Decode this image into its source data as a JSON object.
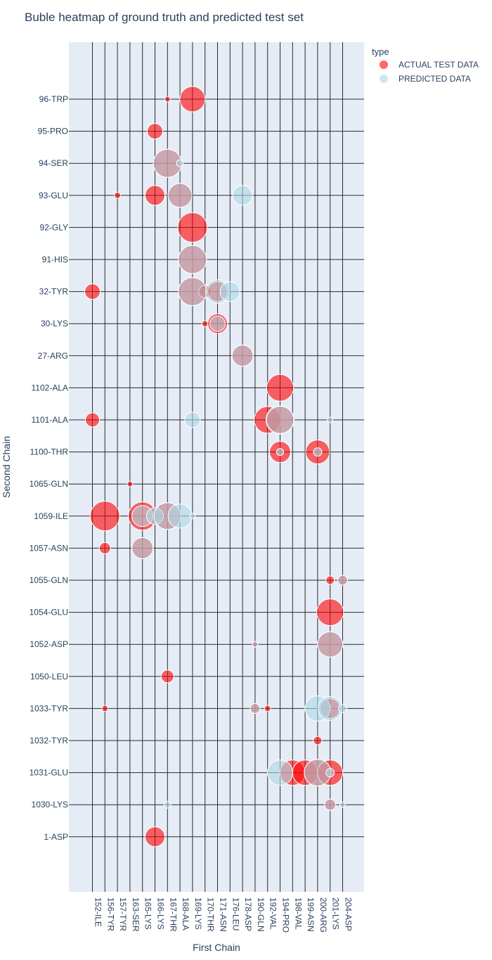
{
  "chart_data": {
    "type": "scatter",
    "title": "Buble heatmap of ground truth and predicted test set",
    "xlabel": "First Chain",
    "ylabel": "Second Chain",
    "legend_title": "type",
    "legend_position": "top-right",
    "grid": true,
    "x_categories": [
      "152-ILE",
      "156-TYR",
      "157-TYR",
      "163-SER",
      "165-LYS",
      "166-LYS",
      "167-THR",
      "168-ALA",
      "169-LYS",
      "170-THR",
      "171-ASN",
      "176-LEU",
      "178-ASP",
      "190-GLN",
      "192-VAL",
      "194-PRO",
      "198-VAL",
      "199-ASN",
      "200-ARG",
      "201-LYS",
      "204-ASP"
    ],
    "y_categories": [
      "96-TRP",
      "95-PRO",
      "94-SER",
      "93-GLU",
      "92-GLY",
      "91-HIS",
      "32-TYR",
      "30-LYS",
      "27-ARG",
      "1102-ALA",
      "1101-ALA",
      "1100-THR",
      "1065-GLN",
      "1059-ILE",
      "1057-ASN",
      "1055-GLN",
      "1054-GLU",
      "1052-ASP",
      "1050-LEU",
      "1033-TYR",
      "1032-TYR",
      "1031-GLU",
      "1030-LYS",
      "1-ASP"
    ],
    "series": [
      {
        "name": "ACTUAL TEST DATA",
        "color": "#ff0000",
        "opacity": 0.6,
        "points": [
          {
            "x": "167-THR",
            "y": "96-TRP",
            "size": 8
          },
          {
            "x": "169-LYS",
            "y": "96-TRP",
            "size": 36
          },
          {
            "x": "166-LYS",
            "y": "95-PRO",
            "size": 22
          },
          {
            "x": "167-THR",
            "y": "94-SER",
            "size": 40
          },
          {
            "x": "157-TYR",
            "y": "93-GLU",
            "size": 9
          },
          {
            "x": "166-LYS",
            "y": "93-GLU",
            "size": 28
          },
          {
            "x": "168-ALA",
            "y": "93-GLU",
            "size": 34
          },
          {
            "x": "169-LYS",
            "y": "92-GLY",
            "size": 42
          },
          {
            "x": "169-LYS",
            "y": "91-HIS",
            "size": 40
          },
          {
            "x": "152-ILE",
            "y": "32-TYR",
            "size": 22
          },
          {
            "x": "169-LYS",
            "y": "32-TYR",
            "size": 40
          },
          {
            "x": "170-THR",
            "y": "32-TYR",
            "size": 18
          },
          {
            "x": "171-ASN",
            "y": "32-TYR",
            "size": 28
          },
          {
            "x": "170-THR",
            "y": "30-LYS",
            "size": 9
          },
          {
            "x": "171-ASN",
            "y": "30-LYS",
            "size": 28
          },
          {
            "x": "178-ASP",
            "y": "27-ARG",
            "size": 30
          },
          {
            "x": "194-PRO",
            "y": "1102-ALA",
            "size": 38
          },
          {
            "x": "152-ILE",
            "y": "1101-ALA",
            "size": 20
          },
          {
            "x": "192-VAL",
            "y": "1101-ALA",
            "size": 38
          },
          {
            "x": "194-PRO",
            "y": "1101-ALA",
            "size": 38
          },
          {
            "x": "194-PRO",
            "y": "1100-THR",
            "size": 30
          },
          {
            "x": "200-ARG",
            "y": "1100-THR",
            "size": 34
          },
          {
            "x": "163-SER",
            "y": "1065-GLN",
            "size": 8
          },
          {
            "x": "156-TYR",
            "y": "1059-ILE",
            "size": 42
          },
          {
            "x": "165-LYS",
            "y": "1059-ILE",
            "size": 40
          },
          {
            "x": "167-THR",
            "y": "1059-ILE",
            "size": 38
          },
          {
            "x": "156-TYR",
            "y": "1057-ASN",
            "size": 16
          },
          {
            "x": "165-LYS",
            "y": "1057-ASN",
            "size": 30
          },
          {
            "x": "201-LYS",
            "y": "1055-GLN",
            "size": 12
          },
          {
            "x": "204-ASP",
            "y": "1055-GLN",
            "size": 14
          },
          {
            "x": "201-LYS",
            "y": "1054-GLU",
            "size": 38
          },
          {
            "x": "190-GLN",
            "y": "1052-ASP",
            "size": 8
          },
          {
            "x": "201-LYS",
            "y": "1052-ASP",
            "size": 36
          },
          {
            "x": "167-THR",
            "y": "1050-LEU",
            "size": 18
          },
          {
            "x": "156-TYR",
            "y": "1033-TYR",
            "size": 9
          },
          {
            "x": "190-GLN",
            "y": "1033-TYR",
            "size": 14
          },
          {
            "x": "192-VAL",
            "y": "1033-TYR",
            "size": 9
          },
          {
            "x": "201-LYS",
            "y": "1033-TYR",
            "size": 28
          },
          {
            "x": "200-ARG",
            "y": "1032-TYR",
            "size": 12
          },
          {
            "x": "198-VAL",
            "y": "1031-GLU",
            "size": 36
          },
          {
            "x": "199-ASN",
            "y": "1031-GLU",
            "size": 36
          },
          {
            "x": "200-ARG",
            "y": "1031-GLU",
            "size": 38
          },
          {
            "x": "201-LYS",
            "y": "1031-GLU",
            "size": 36
          },
          {
            "x": "201-LYS",
            "y": "1030-LYS",
            "size": 16
          },
          {
            "x": "166-LYS",
            "y": "1-ASP",
            "size": 28
          }
        ]
      },
      {
        "name": "PREDICTED DATA",
        "color": "#add8e6",
        "opacity": 0.6,
        "points": [
          {
            "x": "167-THR",
            "y": "94-SER",
            "size": 40
          },
          {
            "x": "168-ALA",
            "y": "94-SER",
            "size": 10
          },
          {
            "x": "168-ALA",
            "y": "93-GLU",
            "size": 34
          },
          {
            "x": "178-ASP",
            "y": "93-GLU",
            "size": 28
          },
          {
            "x": "169-LYS",
            "y": "91-HIS",
            "size": 40
          },
          {
            "x": "169-LYS",
            "y": "32-TYR",
            "size": 40
          },
          {
            "x": "171-ASN",
            "y": "32-TYR",
            "size": 34
          },
          {
            "x": "176-LEU",
            "y": "32-TYR",
            "size": 28
          },
          {
            "x": "171-ASN",
            "y": "30-LYS",
            "size": 22
          },
          {
            "x": "178-ASP",
            "y": "27-ARG",
            "size": 30
          },
          {
            "x": "169-LYS",
            "y": "1101-ALA",
            "size": 22
          },
          {
            "x": "194-PRO",
            "y": "1101-ALA",
            "size": 40
          },
          {
            "x": "201-LYS",
            "y": "1101-ALA",
            "size": 8
          },
          {
            "x": "194-PRO",
            "y": "1100-THR",
            "size": 10
          },
          {
            "x": "200-ARG",
            "y": "1100-THR",
            "size": 12
          },
          {
            "x": "165-LYS",
            "y": "1059-ILE",
            "size": 30
          },
          {
            "x": "166-LYS",
            "y": "1059-ILE",
            "size": 24
          },
          {
            "x": "167-THR",
            "y": "1059-ILE",
            "size": 38
          },
          {
            "x": "168-ALA",
            "y": "1059-ILE",
            "size": 34
          },
          {
            "x": "169-LYS",
            "y": "1059-ILE",
            "size": 8
          },
          {
            "x": "165-LYS",
            "y": "1057-ASN",
            "size": 30
          },
          {
            "x": "204-ASP",
            "y": "1055-GLN",
            "size": 14
          },
          {
            "x": "190-GLN",
            "y": "1052-ASP",
            "size": 8
          },
          {
            "x": "201-LYS",
            "y": "1052-ASP",
            "size": 36
          },
          {
            "x": "190-GLN",
            "y": "1033-TYR",
            "size": 14
          },
          {
            "x": "200-ARG",
            "y": "1033-TYR",
            "size": 36
          },
          {
            "x": "201-LYS",
            "y": "1033-TYR",
            "size": 34
          },
          {
            "x": "204-ASP",
            "y": "1033-TYR",
            "size": 12
          },
          {
            "x": "194-PRO",
            "y": "1031-GLU",
            "size": 36
          },
          {
            "x": "200-ARG",
            "y": "1031-GLU",
            "size": 38
          },
          {
            "x": "201-LYS",
            "y": "1031-GLU",
            "size": 12
          },
          {
            "x": "167-THR",
            "y": "1030-LYS",
            "size": 10
          },
          {
            "x": "201-LYS",
            "y": "1030-LYS",
            "size": 16
          },
          {
            "x": "204-ASP",
            "y": "1030-LYS",
            "size": 8
          }
        ]
      }
    ]
  }
}
